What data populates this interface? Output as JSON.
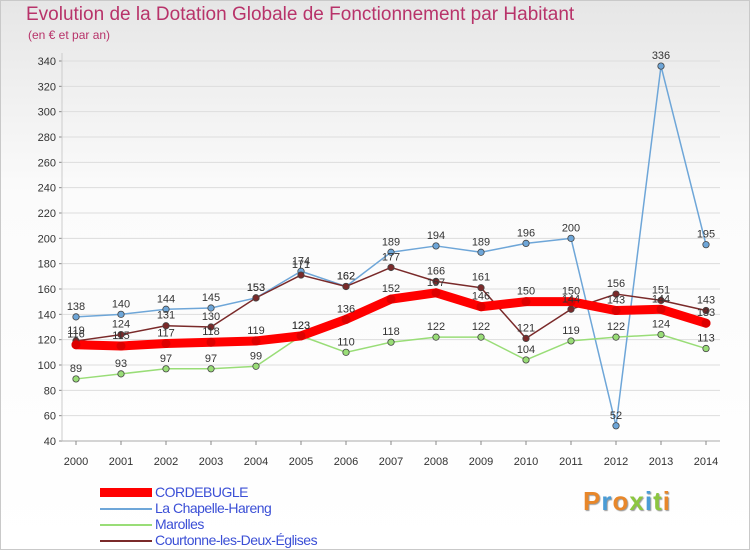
{
  "header": {
    "title": "Evolution de la Dotation Globale de Fonctionnement par Habitant",
    "subtitle": "(en € et par an)"
  },
  "brand": {
    "logo_text": "Proxiti",
    "logo_colors": [
      "#e8872a",
      "#4a9cd6",
      "#e8872a",
      "#8cc63f",
      "#4a9cd6",
      "#8cc63f",
      "#e8872a"
    ]
  },
  "chart_data": {
    "type": "line",
    "title": "Evolution de la Dotation Globale de Fonctionnement par Habitant",
    "subtitle": "(en € et par an)",
    "x": [
      "2000",
      "2001",
      "2002",
      "2003",
      "2004",
      "2005",
      "2006",
      "2007",
      "2008",
      "2009",
      "2010",
      "2011",
      "2012",
      "2013",
      "2014"
    ],
    "ylim": [
      40,
      340
    ],
    "yticks": [
      40,
      60,
      80,
      100,
      120,
      140,
      160,
      180,
      200,
      220,
      240,
      260,
      280,
      300,
      320,
      340
    ],
    "grid": "horizontal",
    "legend_position": "bottom-left",
    "series": [
      {
        "name": "CORDEBUGLE",
        "color": "#ff0000",
        "width": 9,
        "values": [
          116,
          115,
          117,
          118,
          119,
          123,
          136,
          152,
          157,
          146,
          150,
          150,
          143,
          144,
          133
        ]
      },
      {
        "name": "La Chapelle-Hareng",
        "color": "#6ea6d8",
        "width": 1.5,
        "values": [
          138,
          140,
          144,
          145,
          153,
          174,
          162,
          189,
          194,
          189,
          196,
          200,
          52,
          336,
          195
        ]
      },
      {
        "name": "Marolles",
        "color": "#99dd77",
        "width": 1.5,
        "values": [
          89,
          93,
          97,
          97,
          99,
          123,
          110,
          118,
          122,
          122,
          104,
          119,
          122,
          124,
          113
        ]
      },
      {
        "name": "Courtonne-les-Deux-Églises",
        "color": "#7a2a2a",
        "width": 1.5,
        "values": [
          119,
          124,
          131,
          130,
          153,
          171,
          162,
          177,
          166,
          161,
          121,
          144,
          156,
          151,
          143
        ]
      }
    ]
  }
}
